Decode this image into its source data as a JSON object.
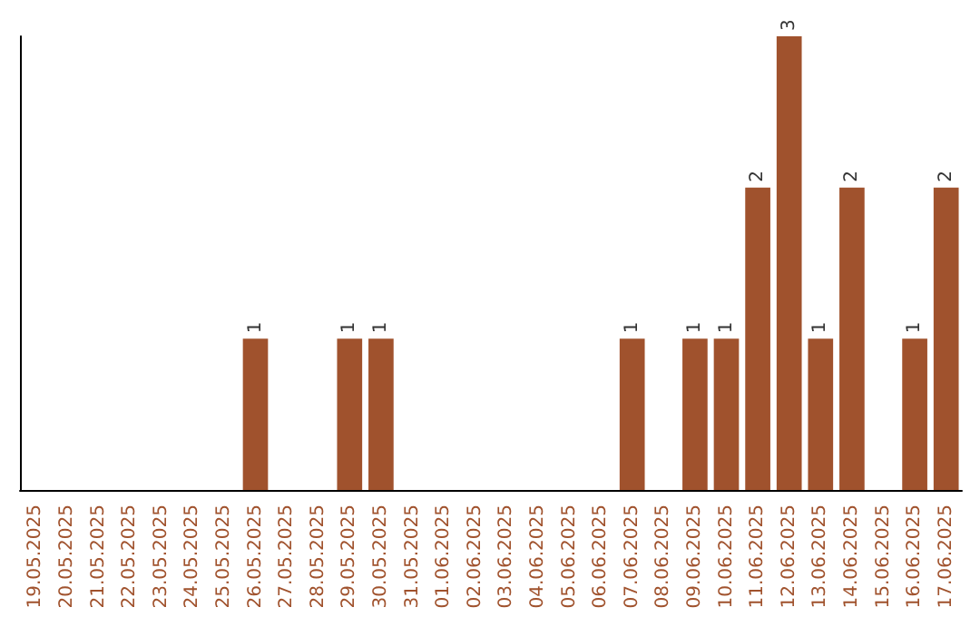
{
  "chart_data": {
    "type": "bar",
    "categories": [
      "19.05.2025",
      "20.05.2025",
      "21.05.2025",
      "22.05.2025",
      "23.05.2025",
      "24.05.2025",
      "25.05.2025",
      "26.05.2025",
      "27.05.2025",
      "28.05.2025",
      "29.05.2025",
      "30.05.2025",
      "31.05.2025",
      "01.06.2025",
      "02.06.2025",
      "03.06.2025",
      "04.06.2025",
      "05.06.2025",
      "06.06.2025",
      "07.06.2025",
      "08.06.2025",
      "09.06.2025",
      "10.06.2025",
      "11.06.2025",
      "12.06.2025",
      "13.06.2025",
      "14.06.2025",
      "15.06.2025",
      "16.06.2025",
      "17.06.2025"
    ],
    "values": [
      0,
      0,
      0,
      0,
      0,
      0,
      0,
      1,
      0,
      0,
      1,
      1,
      0,
      0,
      0,
      0,
      0,
      0,
      0,
      1,
      0,
      1,
      1,
      2,
      3,
      1,
      2,
      0,
      1,
      2
    ],
    "value_labels": [
      null,
      null,
      null,
      null,
      null,
      null,
      null,
      "1",
      null,
      null,
      "1",
      "1",
      null,
      null,
      null,
      null,
      null,
      null,
      null,
      "1",
      null,
      "1",
      "1",
      "2",
      "3",
      "1",
      "2",
      null,
      "1",
      "2"
    ],
    "color": "#a0522d",
    "ylim": [
      0,
      3
    ],
    "tick_labels": "x",
    "grid": false
  }
}
